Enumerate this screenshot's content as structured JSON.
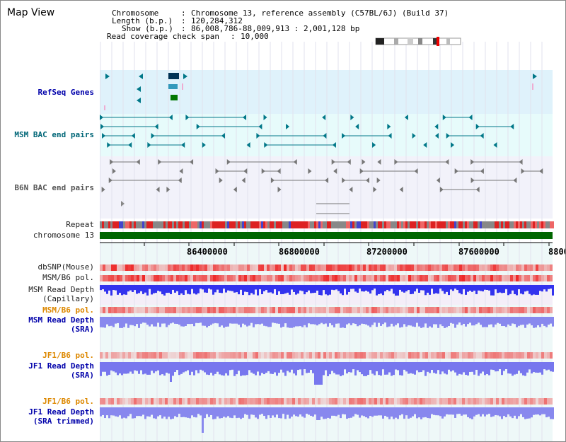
{
  "header": {
    "title": "Map View",
    "chromosome_label": "Chromosome",
    "chromosome_value": "Chromosome 13, reference assembly (C57BL/6J) (Build 37)",
    "length_label": "Length (b.p.)",
    "length_value": "120,284,312",
    "show_label": "Show (b.p.)",
    "show_value": "86,008,786-88,009,913 : 2,001,128 bp",
    "coverage_label": "Read coverage check span",
    "coverage_value": "10,000"
  },
  "tracks": {
    "refseq": "RefSeq Genes",
    "msm_bac": "MSM BAC end pairs",
    "b6n_bac": "B6N BAC end pairs",
    "repeat": "Repeat",
    "chromosome": "chromosome 13",
    "dbsnp": "dbSNP(Mouse)",
    "msm_b6_pol": "MSM/B6 pol.",
    "msm_read_depth_cap_1": "MSM Read Depth",
    "msm_read_depth_cap_2": "(Capillary)",
    "msm_b6_pol_2": "MSM/B6 pol.",
    "msm_read_depth_sra_1": "MSM Read Depth",
    "msm_read_depth_sra_2": "(SRA)",
    "jf1_b6_pol": "JF1/B6 pol.",
    "jf1_read_depth_sra_1": "JF1 Read Depth",
    "jf1_read_depth_sra_2": "(SRA)",
    "jf1_b6_pol_2": "JF1/B6 pol.",
    "jf1_read_depth_trim_1": "JF1 Read Depth",
    "jf1_read_depth_trim_2": "(SRA trimmed)"
  },
  "axis": {
    "ticks": [
      "86400000",
      "86800000",
      "87200000",
      "87600000",
      "8800"
    ]
  },
  "colors": {
    "refseq_bg": "#dff2fb",
    "bac_bg": "#e7fbfb",
    "b6n_bg": "#f2f2fa",
    "lower_bg": "#eef8f8",
    "chromosome_bar": "#006600",
    "depth_blue": "#3333ff",
    "teal_feature": "#007788",
    "grey_feature": "#777777"
  }
}
